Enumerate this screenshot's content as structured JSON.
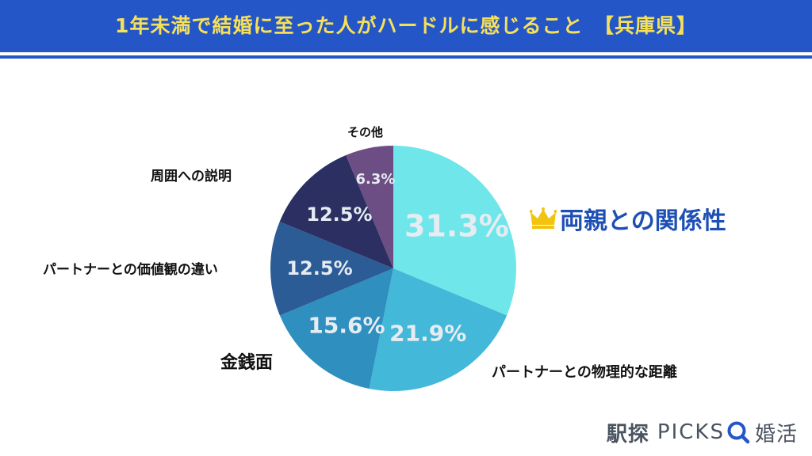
{
  "header": {
    "title": "1年未満で結婚に至った人がハードルに感じること　【兵庫県】"
  },
  "chart_data": {
    "type": "pie",
    "title": "1年未満で結婚に至った人がハードルに感じること　【兵庫県】",
    "categories": [
      "両親との関係性",
      "パートナーとの物理的な距離",
      "金銭面",
      "パートナーとの価値観の違い",
      "周囲への説明",
      "その他"
    ],
    "values": [
      31.3,
      21.9,
      15.6,
      12.5,
      12.5,
      6.3
    ],
    "value_labels": [
      "31.3%",
      "21.9%",
      "15.6%",
      "12.5%",
      "12.5%",
      "6.3%"
    ],
    "colors": [
      "#6ee6ea",
      "#44b8d8",
      "#2f8fbf",
      "#2b5c96",
      "#2b2f61",
      "#6c4e84"
    ],
    "start": "12 o'clock",
    "direction": "clockwise",
    "highlight_category": "両親との関係性"
  },
  "branding": {
    "jp_name": "駅探",
    "latin_name": "PICKS",
    "suffix": "婚活"
  },
  "icons": {
    "crown": "crown-icon",
    "search": "search-icon"
  }
}
